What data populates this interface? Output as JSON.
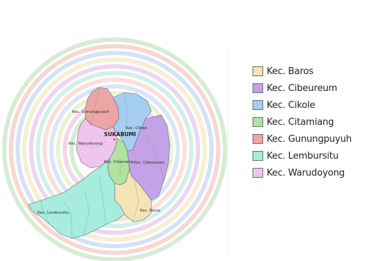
{
  "map": {
    "city_label": "SUKABUMI",
    "district_labels": {
      "gunungpuyuh": "Kec. Gunungpuyuh",
      "cikole": "Kec. Cikole",
      "warudoyong": "Kec. Warudoyong",
      "citamiang": "Kec. Citamiang",
      "cibeureum": "Kec. Cibeureum",
      "baros": "Kec. Baros",
      "lembursitu": "Kec. Lembursitu"
    },
    "ring_colors": [
      "#d6ecd3",
      "#f6d8d1",
      "#d3e3f5",
      "#f7efd1",
      "#ebd7ef",
      "#d1f0ec",
      "#fbe0d8",
      "#d9e6f7",
      "#e9f3d3",
      "#f2d6e9"
    ]
  },
  "legend": {
    "items": [
      {
        "label": "Kec. Baros",
        "color": "#f6e3b4"
      },
      {
        "label": "Kec. Cibeureum",
        "color": "#c3a3e6"
      },
      {
        "label": "Kec. Cikole",
        "color": "#a6cdf2"
      },
      {
        "label": "Kec. Citamiang",
        "color": "#aee3a0"
      },
      {
        "label": "Kec. Gunungpuyuh",
        "color": "#eea5a5"
      },
      {
        "label": "Kec. Lembursitu",
        "color": "#a6ecdf"
      },
      {
        "label": "Kec. Warudoyong",
        "color": "#efc4ef"
      }
    ]
  }
}
